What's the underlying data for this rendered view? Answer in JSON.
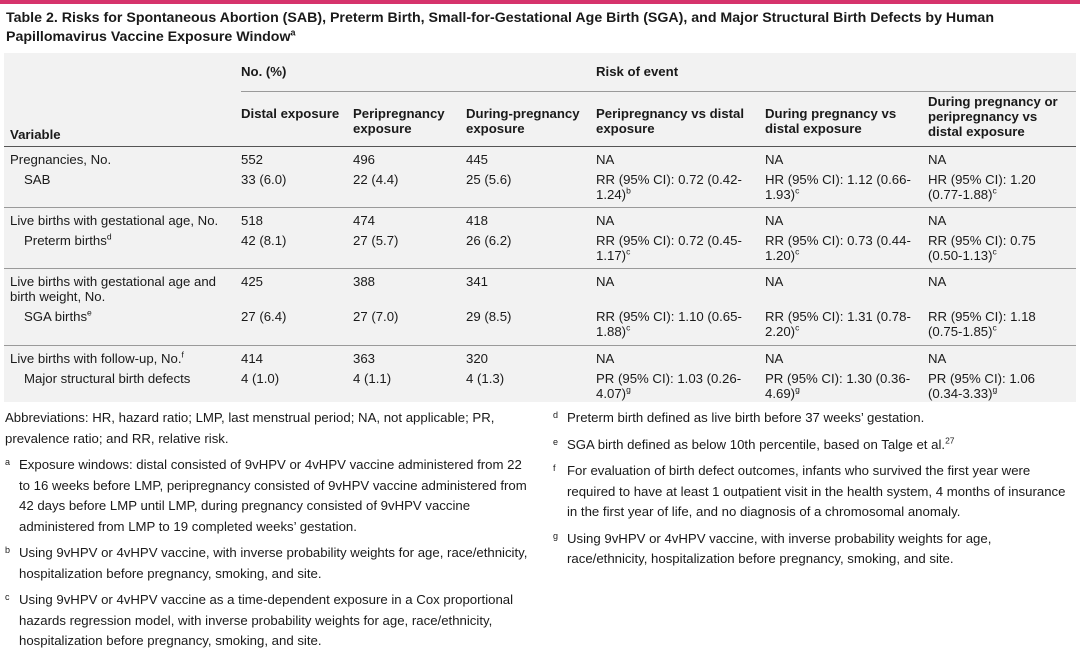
{
  "title": "Table 2. Risks for Spontaneous Abortion (SAB), Preterm Birth, Small-for-Gestational Age Birth (SGA), and Major Structural Birth Defects by Human Papillomavirus Vaccine Exposure Window",
  "title_sup": "a",
  "colors": {
    "accent": "#d6336c",
    "table_bg": "#f2f2f2"
  },
  "header": {
    "group1": "No. (%)",
    "group2": "Risk of event",
    "variable": "Variable",
    "c1": "Distal exposure",
    "c2": "Peripregnancy exposure",
    "c3": "During-pregnancy exposure",
    "c4": "Peripregnancy vs distal exposure",
    "c5": "During pregnancy vs distal exposure",
    "c6": "During pregnancy or peripregnancy vs distal exposure"
  },
  "rows": [
    {
      "variable": "Pregnancies, No.",
      "sup": "",
      "c1": "552",
      "c2": "496",
      "c3": "445",
      "c4": "NA",
      "c4s": "",
      "c5": "NA",
      "c5s": "",
      "c6": "NA",
      "c6s": ""
    },
    {
      "variable": "SAB",
      "sup": "",
      "c1": "33 (6.0)",
      "c2": "22 (4.4)",
      "c3": "25 (5.6)",
      "c4": "RR (95% CI): 0.72 (0.42-1.24)",
      "c4s": "b",
      "c5": "HR (95% CI): 1.12 (0.66-1.93)",
      "c5s": "c",
      "c6": "HR (95% CI): 1.20 (0.77-1.88)",
      "c6s": "c"
    },
    {
      "variable": "Live births with gestational age, No.",
      "sup": "",
      "c1": "518",
      "c2": "474",
      "c3": "418",
      "c4": "NA",
      "c4s": "",
      "c5": "NA",
      "c5s": "",
      "c6": "NA",
      "c6s": ""
    },
    {
      "variable": "Preterm births",
      "sup": "d",
      "c1": "42 (8.1)",
      "c2": "27 (5.7)",
      "c3": "26 (6.2)",
      "c4": "RR (95% CI): 0.72 (0.45-1.17)",
      "c4s": "c",
      "c5": "RR (95% CI): 0.73 (0.44-1.20)",
      "c5s": "c",
      "c6": "RR (95% CI): 0.75 (0.50-1.13)",
      "c6s": "c"
    },
    {
      "variable": "Live births with gestational age and birth weight, No.",
      "sup": "",
      "c1": "425",
      "c2": "388",
      "c3": "341",
      "c4": "NA",
      "c4s": "",
      "c5": "NA",
      "c5s": "",
      "c6": "NA",
      "c6s": ""
    },
    {
      "variable": "SGA births",
      "sup": "e",
      "c1": "27 (6.4)",
      "c2": "27 (7.0)",
      "c3": "29 (8.5)",
      "c4": "RR (95% CI): 1.10 (0.65-1.88)",
      "c4s": "c",
      "c5": "RR (95% CI): 1.31 (0.78-2.20)",
      "c5s": "c",
      "c6": "RR (95% CI): 1.18 (0.75-1.85)",
      "c6s": "c"
    },
    {
      "variable": "Live births with follow-up, No.",
      "sup": "f",
      "c1": "414",
      "c2": "363",
      "c3": "320",
      "c4": "NA",
      "c4s": "",
      "c5": "NA",
      "c5s": "",
      "c6": "NA",
      "c6s": ""
    },
    {
      "variable": "Major structural birth defects",
      "sup": "",
      "c1": "4 (1.0)",
      "c2": "4 (1.1)",
      "c3": "4 (1.3)",
      "c4": "PR (95% CI): 1.03 (0.26-4.07)",
      "c4s": "g",
      "c5": "PR (95% CI): 1.30 (0.36-4.69)",
      "c5s": "g",
      "c6": "PR (95% CI): 1.06 (0.34-3.33)",
      "c6s": "g"
    }
  ],
  "notes_left": [
    {
      "mark": "",
      "text": "Abbreviations: HR, hazard ratio; LMP, last menstrual period; NA, not applicable; PR, prevalence ratio; and RR, relative risk."
    },
    {
      "mark": "a",
      "text": "Exposure windows: distal consisted of 9vHPV or 4vHPV vaccine administered from 22 to 16 weeks before LMP, peripregnancy consisted of 9vHPV vaccine administered from 42 days before LMP until LMP, during pregnancy consisted of 9vHPV vaccine administered from LMP to 19 completed weeks’ gestation."
    },
    {
      "mark": "b",
      "text": "Using 9vHPV or 4vHPV vaccine, with inverse probability weights for age, race/ethnicity, hospitalization before pregnancy, smoking, and site."
    },
    {
      "mark": "c",
      "text": "Using 9vHPV or 4vHPV vaccine as a time-dependent exposure in a Cox proportional hazards regression model, with inverse probability weights for age, race/ethnicity, hospitalization before pregnancy, smoking, and site."
    }
  ],
  "notes_right": [
    {
      "mark": "d",
      "text": "Preterm birth defined as live birth before 37 weeks’ gestation.",
      "sup": ""
    },
    {
      "mark": "e",
      "text": "SGA birth defined as below 10th percentile, based on Talge et al.",
      "sup": "27"
    },
    {
      "mark": "f",
      "text": "For evaluation of birth defect outcomes, infants who survived the first year were required to have at least 1 outpatient visit in the health system, 4 months of insurance in the first year of life, and no diagnosis of a chromosomal anomaly.",
      "sup": ""
    },
    {
      "mark": "g",
      "text": "Using 9vHPV or 4vHPV vaccine, with inverse probability weights for age, race/ethnicity, hospitalization before pregnancy, smoking, and site.",
      "sup": ""
    }
  ]
}
